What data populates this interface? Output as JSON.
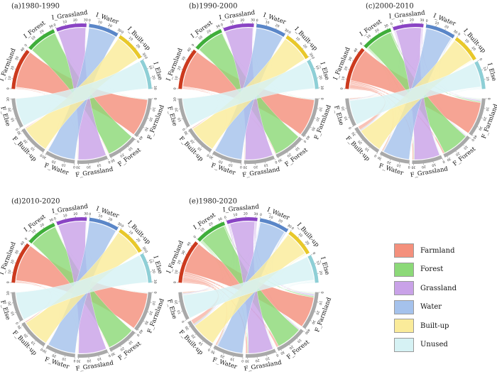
{
  "panels": [
    {
      "title": "(a)1980-1990",
      "initial_labels": [
        "I_Farmland",
        "I_Forest",
        "I_Grassland",
        "I_Water",
        "I_Built-up",
        "I_Else"
      ],
      "final_labels": [
        "F_Farmland",
        "F_Forest",
        "F_Grassland",
        "F_Water",
        "F_Built-up",
        "F_Else"
      ],
      "flows": [
        [
          40,
          0.6,
          0.5,
          0.3,
          0.8,
          0.1
        ],
        [
          0.5,
          30,
          0.3,
          0.1,
          0.1,
          0.1
        ],
        [
          0.4,
          0.3,
          30,
          0.1,
          0.1,
          0.1
        ],
        [
          0.2,
          0.1,
          0.1,
          30,
          0.1,
          0.1
        ],
        [
          0.2,
          0.1,
          0.1,
          0.1,
          30,
          0.1
        ],
        [
          0.3,
          0.1,
          0.1,
          0.1,
          0.1,
          30
        ]
      ]
    },
    {
      "title": "(b)1990-2000",
      "initial_labels": [
        "I_Farmland",
        "I_Forest",
        "I_Grassland",
        "I_Water",
        "I_Built-up",
        "I_Else"
      ],
      "final_labels": [
        "F_Farmland",
        "F_Forest",
        "F_Grassland",
        "F_Water",
        "F_Built-up",
        "F_Else"
      ],
      "flows": [
        [
          40,
          0.8,
          0.6,
          0.4,
          1.0,
          0.2
        ],
        [
          0.6,
          30,
          0.4,
          0.1,
          0.2,
          0.1
        ],
        [
          0.5,
          0.4,
          30,
          0.2,
          0.2,
          0.1
        ],
        [
          0.3,
          0.1,
          0.1,
          30,
          0.1,
          0.1
        ],
        [
          0.2,
          0.1,
          0.1,
          0.1,
          30,
          0.1
        ],
        [
          0.3,
          0.1,
          0.2,
          0.1,
          0.1,
          30
        ]
      ]
    },
    {
      "title": "(c)2000-2010",
      "initial_labels": [
        "I_Farmland",
        "I_Forest",
        "I_Grassland",
        "I_Water",
        "I_Built-up",
        "I_Else"
      ],
      "final_labels": [
        "F_Farmland",
        "F_Forest",
        "F_Grassland",
        "F_Water",
        "F_Built-up",
        "F_Else"
      ],
      "flows": [
        [
          36,
          2,
          1.5,
          1.2,
          4,
          1
        ],
        [
          1.5,
          29,
          0.8,
          0.5,
          0.6,
          0.4
        ],
        [
          1.2,
          0.8,
          28,
          0.6,
          0.8,
          0.6
        ],
        [
          0.8,
          0.4,
          0.4,
          29,
          0.4,
          0.4
        ],
        [
          0.6,
          0.3,
          0.3,
          0.3,
          28,
          0.3
        ],
        [
          0.8,
          0.4,
          0.6,
          0.4,
          0.4,
          27
        ]
      ]
    },
    {
      "title": "(d)2010-2020",
      "initial_labels": [
        "I_Farmland",
        "I_Forest",
        "I_Grassland",
        "I_Water",
        "I_Built-up",
        "I_Else"
      ],
      "final_labels": [
        "F_Farmland",
        "F_Forest",
        "F_Grassland",
        "F_Water",
        "F_Built-up",
        "F_Else"
      ],
      "flows": [
        [
          40,
          0.6,
          0.5,
          0.3,
          1.2,
          0.2
        ],
        [
          0.5,
          30,
          0.3,
          0.1,
          0.2,
          0.1
        ],
        [
          0.4,
          0.3,
          30,
          0.1,
          0.2,
          0.1
        ],
        [
          0.2,
          0.1,
          0.1,
          30,
          0.1,
          0.1
        ],
        [
          0.2,
          0.1,
          0.1,
          0.1,
          30,
          0.1
        ],
        [
          0.3,
          0.1,
          0.1,
          0.1,
          0.1,
          30
        ]
      ]
    },
    {
      "title": "(e)1980-2020",
      "initial_labels": [
        "I_Farmland",
        "I_Forest",
        "I_Grassland",
        "I_Water",
        "I_Built-up",
        "I_Else"
      ],
      "final_labels": [
        "F_Farmland",
        "F_Forest",
        "F_Grassland",
        "F_Water",
        "F_Built-up",
        "F_Else"
      ],
      "flows": [
        [
          34,
          2.5,
          2,
          1.5,
          5,
          1.2
        ],
        [
          1.8,
          28,
          1,
          0.6,
          0.8,
          0.5
        ],
        [
          1.5,
          1,
          27,
          0.8,
          1,
          0.8
        ],
        [
          1,
          0.5,
          0.5,
          28,
          0.5,
          0.5
        ],
        [
          0.8,
          0.4,
          0.4,
          0.4,
          27,
          0.4
        ],
        [
          1,
          0.5,
          0.8,
          0.5,
          0.5,
          26
        ]
      ]
    }
  ],
  "legend": [
    {
      "label": "Farmland",
      "color": "#f4907c"
    },
    {
      "label": "Forest",
      "color": "#8cd978"
    },
    {
      "label": "Grassland",
      "color": "#c9a2e8"
    },
    {
      "label": "Water",
      "color": "#a5c2ec"
    },
    {
      "label": "Built-up",
      "color": "#faeb9a"
    },
    {
      "label": "Unused",
      "color": "#d6f2f4"
    }
  ],
  "segment_colors": {
    "initial": [
      "#cc3a1e",
      "#3fae3a",
      "#8a44c4",
      "#5a86c8",
      "#e8c82a",
      "#8ecfd6"
    ],
    "final": "#a9a9a9"
  },
  "tick_labels": [
    "0",
    "10",
    "20",
    "30",
    "40"
  ]
}
